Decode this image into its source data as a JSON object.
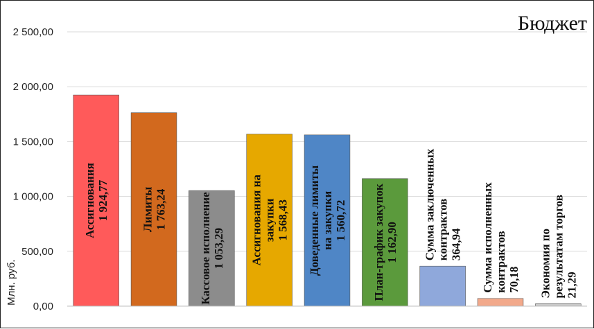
{
  "chart_data": {
    "type": "bar",
    "title": "Бюджет",
    "xlabel": "",
    "ylabel": "Млн. руб.",
    "ylim": [
      0,
      2500
    ],
    "y_ticks": [
      0,
      500,
      1000,
      1500,
      2000,
      2500
    ],
    "y_tick_labels": [
      "0,00",
      "500,00",
      "1 000,00",
      "1 500,00",
      "2 000,00",
      "2 500,00"
    ],
    "grid": true,
    "categories": [
      "Ассигнования",
      "Лимиты",
      "Кассовое исполнение",
      "Ассигнования на закупки",
      "Доведенные лимиты на закупки",
      "План-график закупок",
      "Сумма заключенных контрактов",
      "Сумма исполненных контрактов",
      "Экономия по результатам торгов"
    ],
    "values": [
      1924.77,
      1763.24,
      1053.29,
      1568.43,
      1560.72,
      1162.9,
      364.94,
      70.18,
      21.29
    ],
    "bar_labels": [
      [
        "Ассигнования",
        "1 924,77"
      ],
      [
        "Лимиты",
        "1 763,24"
      ],
      [
        "Кассовое исполнение",
        "1 053,29"
      ],
      [
        "Ассигнования на",
        "закупки",
        "1 568,43"
      ],
      [
        "Доведенные лимиты",
        "на закупки",
        "1 560,72"
      ],
      [
        "План-график закупок",
        "1 162,90"
      ],
      [
        "Сумма заключенных",
        "контрактов",
        "364,94"
      ],
      [
        "Сумма исполненных",
        "контрактов",
        "70,18"
      ],
      [
        "Экономия по",
        "результатам торгов",
        "21,29"
      ]
    ],
    "colors": [
      "#ff5a5a",
      "#d2691e",
      "#8c8c8c",
      "#e6a800",
      "#4f86c6",
      "#5b9a3c",
      "#8fa8db",
      "#f2a98b",
      "#c8c8c8"
    ]
  }
}
